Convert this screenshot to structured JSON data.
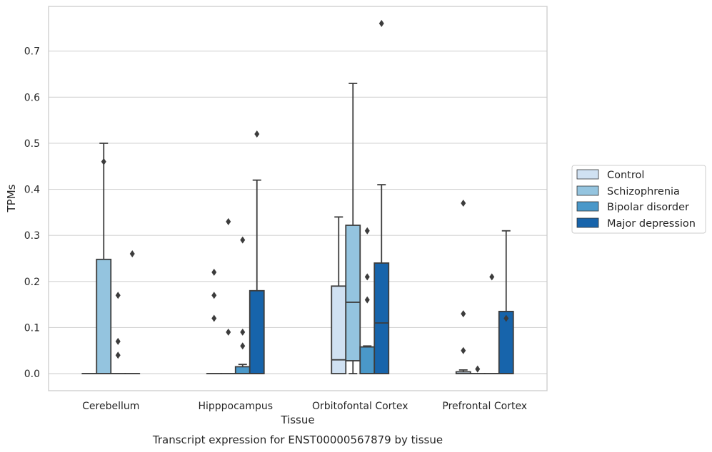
{
  "chart_data": {
    "type": "box",
    "caption": "Transcript expression for ENST00000567879 by tissue",
    "xlabel": "Tissue",
    "ylabel": "TPMs",
    "ylim": [
      -0.037,
      0.797
    ],
    "y_ticks": [
      "0.0",
      "0.1",
      "0.2",
      "0.3",
      "0.4",
      "0.5",
      "0.6",
      "0.7"
    ],
    "y_tick_values": [
      0,
      0.1,
      0.2,
      0.3,
      0.4,
      0.5,
      0.6,
      0.7
    ],
    "grid": "horizontal",
    "legend_position": "right, outside",
    "categories": [
      "Cerebellum",
      "Hipppocampus",
      "Orbitofontal Cortex",
      "Prefrontal Cortex"
    ],
    "series": [
      {
        "name": "Control",
        "color": "#d0e1f2",
        "boxes": [
          {
            "q1": 0,
            "median": 0,
            "q3": 0,
            "whisker_low": 0,
            "whisker_high": 0,
            "outliers": []
          },
          {
            "q1": 0,
            "median": 0,
            "q3": 0,
            "whisker_low": 0,
            "whisker_high": 0,
            "outliers": [
              0.22,
              0.17,
              0.12
            ]
          },
          {
            "q1": 0,
            "median": 0.03,
            "q3": 0.19,
            "whisker_low": 0,
            "whisker_high": 0.34,
            "outliers": []
          },
          {
            "q1": 0,
            "median": 0,
            "q3": 0.004,
            "whisker_low": 0,
            "whisker_high": 0.008,
            "outliers": [
              0.37,
              0.13,
              0.05
            ]
          }
        ]
      },
      {
        "name": "Schizophrenia",
        "color": "#94c4df",
        "boxes": [
          {
            "q1": 0,
            "median": 0,
            "q3": 0.248,
            "whisker_low": 0,
            "whisker_high": 0.5,
            "outliers": [
              0.46
            ]
          },
          {
            "q1": 0,
            "median": 0,
            "q3": 0,
            "whisker_low": 0,
            "whisker_high": 0,
            "outliers": [
              0.33,
              0.09
            ]
          },
          {
            "q1": 0.028,
            "median": 0.155,
            "q3": 0.322,
            "whisker_low": 0,
            "whisker_high": 0.63,
            "outliers": []
          },
          {
            "q1": 0,
            "median": 0,
            "q3": 0,
            "whisker_low": 0,
            "whisker_high": 0,
            "outliers": [
              0.01
            ]
          }
        ]
      },
      {
        "name": "Bipolar disorder",
        "color": "#4a98c9",
        "boxes": [
          {
            "q1": 0,
            "median": 0,
            "q3": 0,
            "whisker_low": 0,
            "whisker_high": 0,
            "outliers": [
              0.17,
              0.07,
              0.04
            ]
          },
          {
            "q1": 0,
            "median": 0,
            "q3": 0.015,
            "whisker_low": 0,
            "whisker_high": 0.02,
            "outliers": [
              0.29,
              0.09,
              0.06
            ]
          },
          {
            "q1": 0,
            "median": 0,
            "q3": 0.058,
            "whisker_low": 0,
            "whisker_high": 0.06,
            "outliers": [
              0.31,
              0.21,
              0.16
            ]
          },
          {
            "q1": 0,
            "median": 0,
            "q3": 0,
            "whisker_low": 0,
            "whisker_high": 0,
            "outliers": [
              0.21
            ]
          }
        ]
      },
      {
        "name": "Major depression",
        "color": "#1764ab",
        "boxes": [
          {
            "q1": 0,
            "median": 0,
            "q3": 0,
            "whisker_low": 0,
            "whisker_high": 0,
            "outliers": [
              0.26
            ]
          },
          {
            "q1": 0,
            "median": 0,
            "q3": 0.18,
            "whisker_low": 0,
            "whisker_high": 0.42,
            "outliers": [
              0.52
            ]
          },
          {
            "q1": 0,
            "median": 0.11,
            "q3": 0.24,
            "whisker_low": 0,
            "whisker_high": 0.41,
            "outliers": [
              0.76
            ]
          },
          {
            "q1": 0,
            "median": 0,
            "q3": 0.135,
            "whisker_low": 0,
            "whisker_high": 0.31,
            "outliers": [
              0.12
            ]
          }
        ]
      }
    ]
  }
}
